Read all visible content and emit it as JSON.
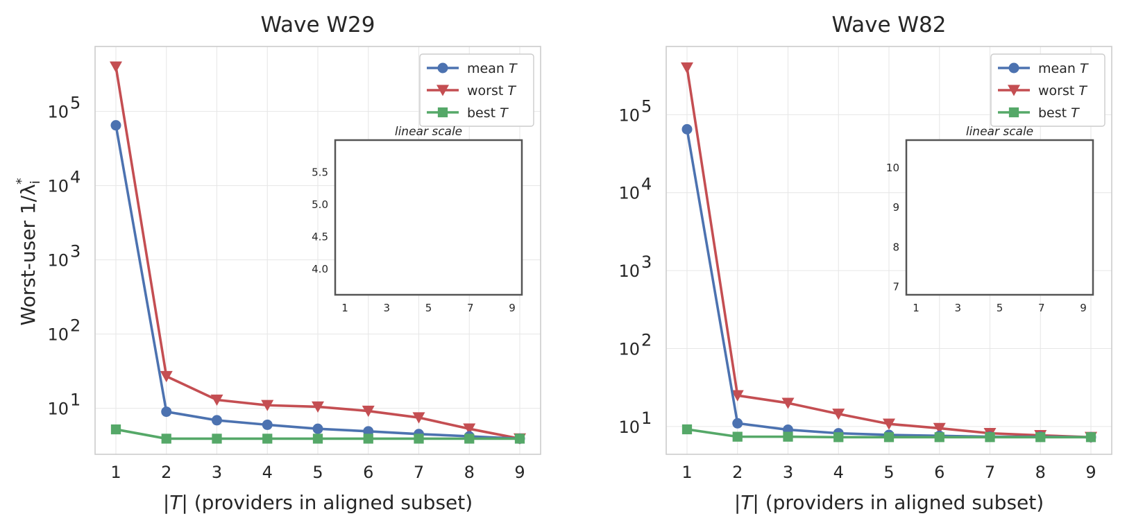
{
  "colors": {
    "mean": "#4c72b0",
    "worst": "#c44e52",
    "best": "#55a868"
  },
  "y_axis_label": "Worst-user 1/λ",
  "y_axis_label_sub": "i",
  "y_axis_label_sup": "*",
  "legend": [
    {
      "key": "mean",
      "prefix": "mean",
      "var": "T",
      "marker": "circle"
    },
    {
      "key": "worst",
      "prefix": "worst",
      "var": "T",
      "marker": "triangle-down"
    },
    {
      "key": "best",
      "prefix": "best",
      "var": "T",
      "marker": "square"
    }
  ],
  "chart_data": [
    {
      "type": "line",
      "title": "Wave W29",
      "xlabel": "|T| (providers in aligned subset)",
      "xlabel_var": "T",
      "xlabel_rest": " (providers in aligned subset)",
      "yscale": "log",
      "ylim": [
        2.4,
        750000
      ],
      "x": [
        1,
        2,
        3,
        4,
        5,
        6,
        7,
        8,
        9
      ],
      "x_ticks": [
        "1",
        "2",
        "3",
        "4",
        "5",
        "6",
        "7",
        "8",
        "9"
      ],
      "y_ticks": [
        {
          "value": 10,
          "base": "10",
          "exp": "1"
        },
        {
          "value": 100,
          "base": "10",
          "exp": "2"
        },
        {
          "value": 1000,
          "base": "10",
          "exp": "3"
        },
        {
          "value": 10000,
          "base": "10",
          "exp": "4"
        },
        {
          "value": 100000,
          "base": "10",
          "exp": "5"
        }
      ],
      "series": [
        {
          "name": "mean T",
          "key": "mean",
          "values": [
            65000,
            9.0,
            6.9,
            6.0,
            5.3,
            4.9,
            4.5,
            4.2,
            3.9
          ]
        },
        {
          "name": "worst T",
          "key": "worst",
          "values": [
            400000,
            27,
            13,
            11,
            10.5,
            9.2,
            7.5,
            5.3,
            3.9
          ]
        },
        {
          "name": "best T",
          "key": "best",
          "values": [
            5.2,
            3.9,
            3.9,
            3.9,
            3.9,
            3.9,
            3.9,
            3.9,
            3.9
          ]
        }
      ],
      "inset": {
        "title": "linear scale",
        "ylim": [
          3.6,
          6.0
        ],
        "y_ticks": [
          "4.0",
          "4.5",
          "5.0",
          "5.5"
        ],
        "y_tick_values": [
          4.0,
          4.5,
          5.0,
          5.5
        ],
        "x_ticks": [
          "1",
          "3",
          "5",
          "7",
          "9"
        ],
        "x_tick_values": [
          1,
          3,
          5,
          7,
          9
        ]
      }
    },
    {
      "type": "line",
      "title": "Wave W82",
      "xlabel": "|T| (providers in aligned subset)",
      "xlabel_var": "T",
      "xlabel_rest": " (providers in aligned subset)",
      "yscale": "log",
      "ylim": [
        4.4,
        750000
      ],
      "x": [
        1,
        2,
        3,
        4,
        5,
        6,
        7,
        8,
        9
      ],
      "x_ticks": [
        "1",
        "2",
        "3",
        "4",
        "5",
        "6",
        "7",
        "8",
        "9"
      ],
      "y_ticks": [
        {
          "value": 10,
          "base": "10",
          "exp": "1"
        },
        {
          "value": 100,
          "base": "10",
          "exp": "2"
        },
        {
          "value": 1000,
          "base": "10",
          "exp": "3"
        },
        {
          "value": 10000,
          "base": "10",
          "exp": "4"
        },
        {
          "value": 100000,
          "base": "10",
          "exp": "5"
        }
      ],
      "series": [
        {
          "name": "mean T",
          "key": "mean",
          "values": [
            65000,
            11,
            9.1,
            8.2,
            7.8,
            7.6,
            7.4,
            7.4,
            7.3
          ]
        },
        {
          "name": "worst T",
          "key": "worst",
          "values": [
            400000,
            25,
            20,
            14.5,
            10.8,
            9.5,
            8.2,
            7.7,
            7.3
          ]
        },
        {
          "name": "best T",
          "key": "best",
          "values": [
            9.2,
            7.4,
            7.4,
            7.3,
            7.3,
            7.3,
            7.3,
            7.3,
            7.3
          ]
        }
      ],
      "inset": {
        "title": "linear scale",
        "ylim": [
          6.8,
          10.7
        ],
        "y_ticks": [
          "7",
          "8",
          "9",
          "10"
        ],
        "y_tick_values": [
          7,
          8,
          9,
          10
        ],
        "x_ticks": [
          "1",
          "3",
          "5",
          "7",
          "9"
        ],
        "x_tick_values": [
          1,
          3,
          5,
          7,
          9
        ]
      }
    }
  ]
}
